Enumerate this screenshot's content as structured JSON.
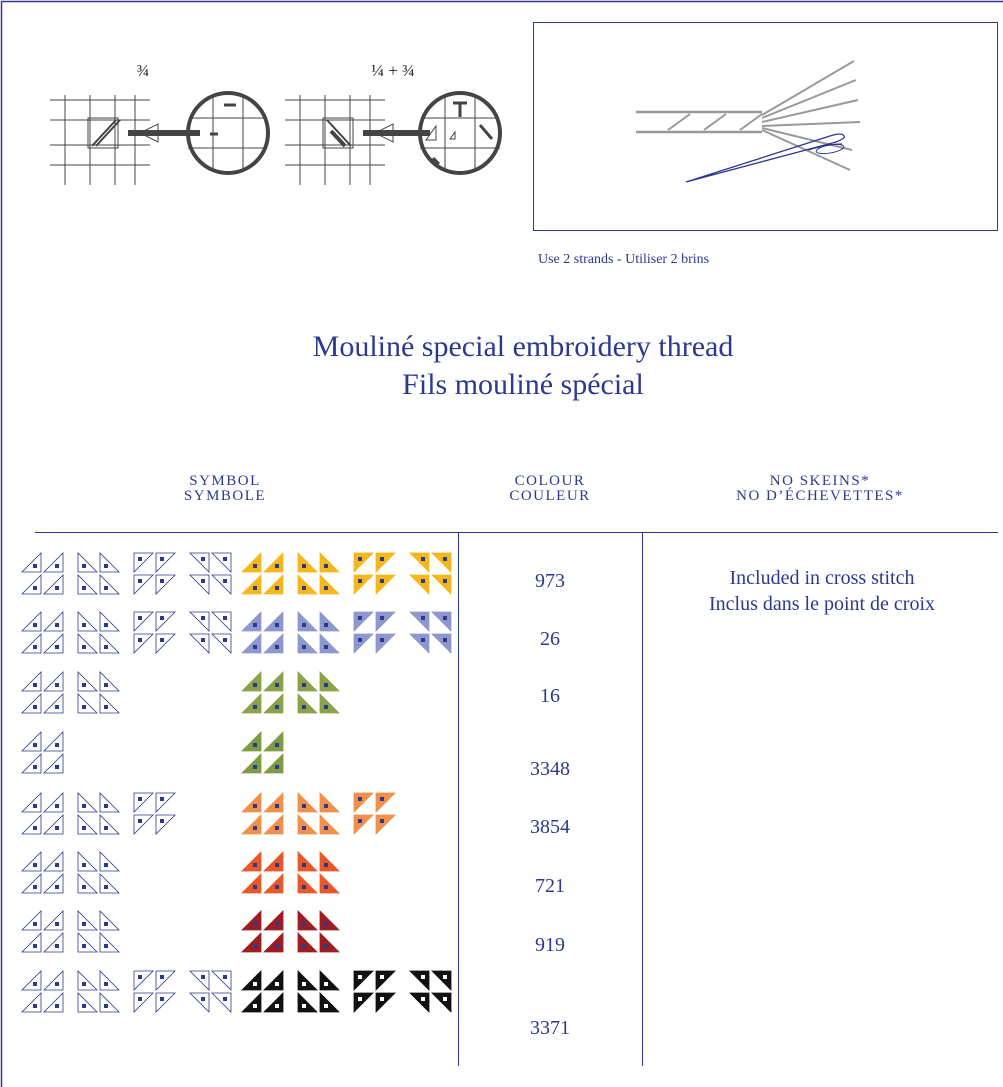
{
  "illustrations": {
    "three_quarter": "¾",
    "quarter_plus": "¼ + ¾"
  },
  "caption": "Use 2 strands - Utiliser 2 brins",
  "title": [
    "Mouliné special embroidery thread",
    "Fils mouliné spécial"
  ],
  "table": {
    "headers": [
      [
        "SYMBOL",
        "SYMBOLE"
      ],
      [
        "COLOUR",
        "COULEUR"
      ],
      [
        "NO SKEINS*",
        "NO D’ÉCHEVETTES*"
      ]
    ],
    "rows": [
      {
        "colour": 973,
        "color": "#f5b81c"
      },
      {
        "colour": 26,
        "color": "#8e98cc"
      },
      {
        "colour": 16,
        "color": "#8aa24a"
      },
      {
        "colour": 3348,
        "color": "#7d9c45"
      },
      {
        "colour": 3854,
        "color": "#f0904a"
      },
      {
        "colour": 721,
        "color": "#e8582a"
      },
      {
        "colour": 919,
        "color": "#9c1e22"
      },
      {
        "colour": 3371,
        "color": "#111111"
      }
    ],
    "note": [
      "Included in cross stitch",
      "Inclus dans le point de croix"
    ]
  }
}
